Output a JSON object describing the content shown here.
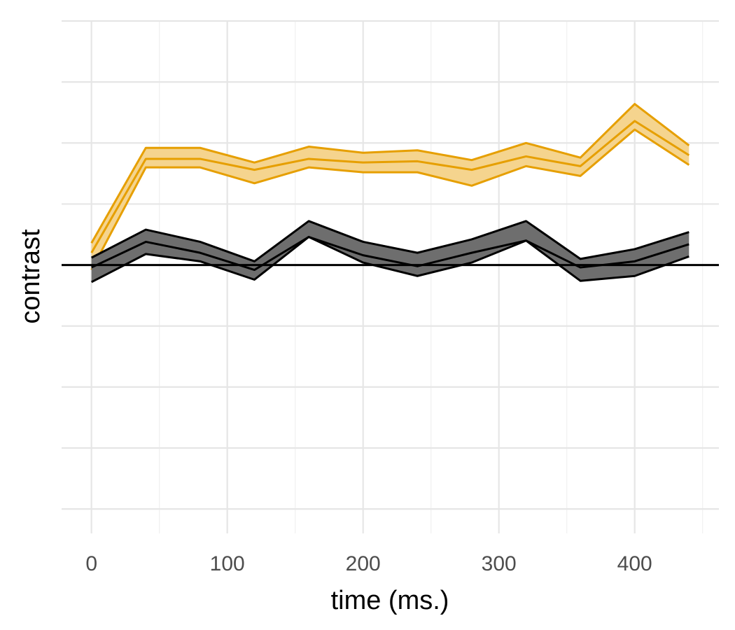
{
  "chart_data": {
    "type": "line",
    "xlabel": "time (ms.)",
    "ylabel": "contrast",
    "xlim": [
      -22,
      462
    ],
    "ylim": [
      -2.2,
      2.0
    ],
    "x_ticks": [
      0,
      100,
      200,
      300,
      400
    ],
    "x_tick_labels": [
      "0",
      "100",
      "200",
      "300",
      "400"
    ],
    "y_gridlines": [
      -2.0,
      -1.5,
      -1.0,
      -0.5,
      0,
      0.5,
      1.0,
      1.5,
      2.0
    ],
    "y_tick_labels_shown": false,
    "reference_line_y": 0,
    "grid": true,
    "legend": "none",
    "x": [
      0,
      40,
      80,
      120,
      160,
      200,
      240,
      280,
      320,
      360,
      400,
      440
    ],
    "series": [
      {
        "color": "#E69F00",
        "fill": "#F5D48E",
        "mean": [
          0.1,
          0.87,
          0.87,
          0.78,
          0.87,
          0.84,
          0.85,
          0.78,
          0.89,
          0.81,
          1.18,
          0.9
        ],
        "upper": [
          0.18,
          0.96,
          0.96,
          0.84,
          0.97,
          0.92,
          0.94,
          0.86,
          1.0,
          0.88,
          1.32,
          0.98
        ],
        "lower": [
          -0.04,
          0.8,
          0.8,
          0.67,
          0.8,
          0.76,
          0.76,
          0.65,
          0.81,
          0.73,
          1.11,
          0.82
        ]
      },
      {
        "color": "#000000",
        "fill": "#6E6E6E",
        "mean": [
          -0.02,
          0.19,
          0.1,
          -0.04,
          0.23,
          0.08,
          -0.01,
          0.1,
          0.2,
          -0.02,
          0.03,
          0.17
        ],
        "upper": [
          0.06,
          0.29,
          0.19,
          0.03,
          0.36,
          0.19,
          0.1,
          0.21,
          0.36,
          0.05,
          0.13,
          0.27
        ],
        "lower": [
          -0.14,
          0.09,
          0.03,
          -0.12,
          0.23,
          0.02,
          -0.09,
          0.02,
          0.2,
          -0.13,
          -0.09,
          0.07
        ]
      }
    ]
  }
}
